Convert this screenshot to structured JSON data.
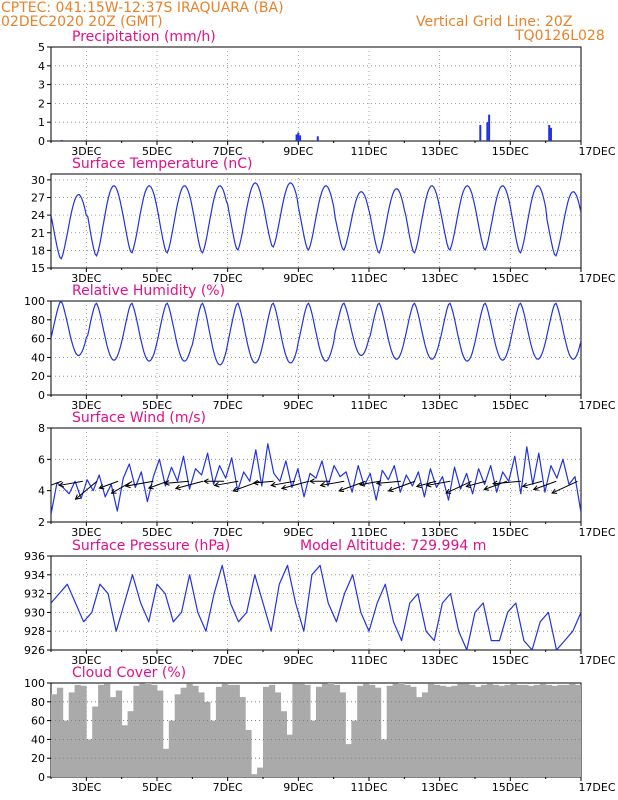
{
  "header": {
    "line1": "CPTEC:   041:15W-12:37S   IRAQUARA (BA)",
    "line2": "02DEC2020 20Z (GMT)",
    "grid_note": "Vertical Grid Line: 20Z",
    "code": "TQ0126L028"
  },
  "colors": {
    "header": "#e8822a",
    "title": "#e0108a",
    "line": "#2233dd",
    "cloud": "#aaaaaa",
    "arrow": "#000000"
  },
  "x_ticks": [
    "3DEC",
    "5DEC",
    "7DEC",
    "9DEC",
    "11DEC",
    "13DEC",
    "15DEC",
    "17DEC"
  ],
  "chart_data": [
    {
      "type": "bar",
      "title": "Precipitation (mm/h)",
      "ylim": [
        0,
        5
      ],
      "yticks": [
        0,
        1,
        2,
        3,
        4,
        5
      ],
      "x_days": [
        2.3,
        8.95,
        9.0,
        9.05,
        9.55,
        14.15,
        14.35,
        14.4,
        16.1,
        16.15
      ],
      "values": [
        0.05,
        0.35,
        0.45,
        0.3,
        0.25,
        0.85,
        1.0,
        1.4,
        0.85,
        0.7
      ]
    },
    {
      "type": "line",
      "title": "Surface Temperature (nC)",
      "ylim": [
        15,
        31
      ],
      "yticks": [
        15,
        18,
        21,
        24,
        27,
        30
      ],
      "daily_max": [
        27.5,
        29,
        29,
        29,
        29,
        29.5,
        29.5,
        29,
        28,
        28.5,
        29,
        29,
        29,
        29,
        28,
        29.5,
        29
      ],
      "daily_min": [
        16.5,
        17,
        17.5,
        17.5,
        17.5,
        18,
        18.5,
        18,
        18,
        17.5,
        17.5,
        18,
        18,
        17.5,
        17,
        18,
        18
      ]
    },
    {
      "type": "line",
      "title": "Relative Humidity (%)",
      "ylim": [
        0,
        100
      ],
      "yticks": [
        0,
        20,
        40,
        60,
        80,
        100
      ],
      "daily_max": [
        100,
        98,
        98,
        98,
        98,
        98,
        98,
        98,
        98,
        98,
        98,
        98,
        98,
        98,
        98,
        98,
        98
      ],
      "daily_min": [
        42,
        37,
        36,
        36,
        32,
        34,
        34,
        36,
        42,
        38,
        38,
        36,
        37,
        38,
        38,
        38,
        38
      ]
    },
    {
      "type": "line",
      "title": "Surface Wind (m/s)",
      "ylim": [
        2,
        8
      ],
      "yticks": [
        2,
        4,
        6,
        8
      ],
      "values": [
        2.5,
        4.5,
        4.2,
        3.8,
        4.6,
        3.5,
        4.7,
        4.0,
        5.0,
        3.6,
        4.4,
        2.7,
        4.8,
        5.7,
        4.2,
        5.2,
        3.3,
        4.9,
        6.0,
        4.3,
        5.5,
        4.6,
        6.2,
        4.1,
        5.4,
        5.0,
        6.4,
        4.4,
        5.6,
        4.8,
        6.1,
        4.0,
        5.2,
        4.6,
        6.6,
        4.3,
        7.0,
        5.1,
        4.6,
        5.9,
        4.2,
        5.4,
        3.6,
        5.1,
        4.8,
        5.9,
        4.3,
        5.6,
        4.9,
        5.2,
        3.9,
        5.6,
        4.3,
        5.1,
        3.4,
        5.3,
        4.7,
        5.6,
        3.9,
        5.0,
        4.3,
        5.2,
        3.6,
        5.4,
        4.2,
        4.9,
        3.4,
        5.5,
        4.1,
        5.1,
        3.8,
        5.4,
        4.4,
        5.6,
        3.9,
        5.2,
        4.6,
        6.2,
        3.8,
        6.8,
        4.4,
        6.4,
        3.9,
        5.6,
        4.8,
        6.0,
        4.4,
        4.9,
        2.6
      ],
      "arrows_x_days": [
        2.3,
        2.9,
        3.3,
        3.9,
        4.3,
        4.9,
        5.3,
        5.9,
        6.3,
        6.9,
        7.3,
        7.9,
        8.3,
        8.9,
        9.3,
        9.9,
        10.3,
        10.9,
        11.3,
        11.9,
        12.3,
        12.9,
        13.3,
        13.9,
        14.3,
        14.9,
        15.3,
        15.9,
        16.3,
        16.9
      ]
    },
    {
      "type": "line",
      "title": "Surface Pressure (hPa)",
      "annotation": "Model Altitude: 729.994 m",
      "ylim": [
        926,
        936
      ],
      "yticks": [
        926,
        928,
        930,
        932,
        934,
        936
      ],
      "values": [
        931,
        932,
        933,
        931,
        929,
        930,
        933,
        932,
        928,
        931,
        934,
        931,
        929,
        933,
        932,
        929,
        930,
        934,
        930,
        928,
        932,
        935,
        931,
        929,
        930,
        934,
        931,
        928,
        933,
        935,
        931,
        928,
        934,
        935,
        931,
        929,
        932,
        934,
        930,
        928,
        931,
        933,
        929,
        927,
        931,
        932,
        928,
        927,
        931,
        932,
        928,
        926,
        930,
        931,
        927,
        927,
        930,
        931,
        927,
        926,
        929,
        930,
        926,
        927,
        928,
        930
      ],
      "x_start": 2,
      "x_end": 17
    },
    {
      "type": "bar",
      "title": "Cloud Cover (%)",
      "ylim": [
        0,
        100
      ],
      "yticks": [
        0,
        20,
        40,
        60,
        80,
        100
      ],
      "values": [
        88,
        95,
        60,
        90,
        98,
        97,
        40,
        75,
        98,
        99,
        85,
        92,
        55,
        70,
        97,
        99,
        100,
        98,
        92,
        30,
        60,
        88,
        95,
        99,
        97,
        90,
        80,
        60,
        96,
        99,
        98,
        98,
        85,
        50,
        3,
        10,
        96,
        98,
        90,
        70,
        45,
        99,
        99,
        98,
        60,
        96,
        99,
        100,
        98,
        90,
        35,
        60,
        97,
        99,
        98,
        95,
        40,
        97,
        99,
        100,
        98,
        96,
        85,
        90,
        99,
        98,
        97,
        96,
        97,
        99,
        99,
        98,
        96,
        98,
        99,
        98,
        97,
        98,
        99,
        98,
        98,
        97,
        98,
        99,
        98,
        97,
        98,
        98,
        99,
        98
      ],
      "x_start": 2,
      "x_end": 17
    }
  ]
}
